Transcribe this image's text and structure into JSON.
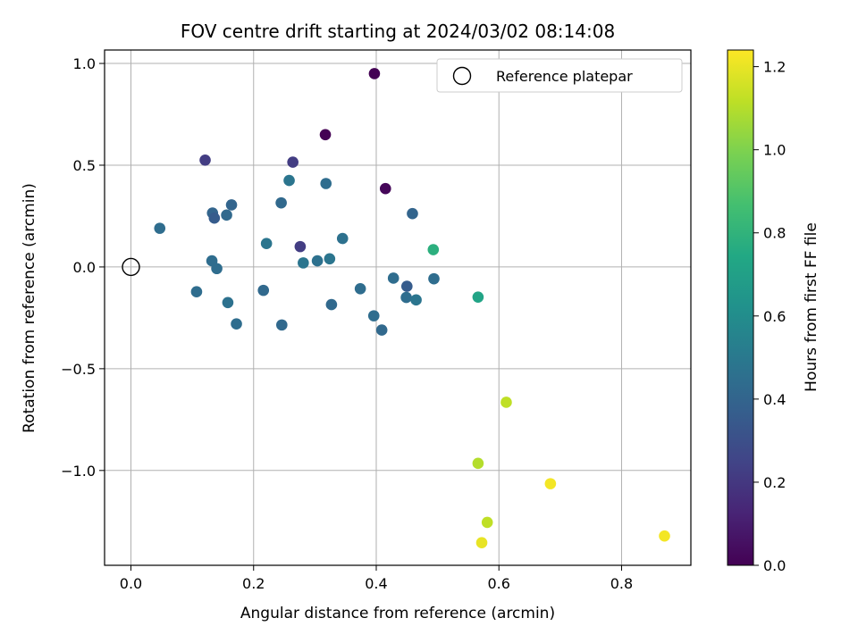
{
  "chart_data": {
    "type": "scatter",
    "title": "FOV centre drift starting at 2024/03/02 08:14:08",
    "xlabel": "Angular distance from reference (arcmin)",
    "ylabel": "Rotation from reference (arcmin)",
    "xlim": [
      -0.043,
      0.913
    ],
    "ylim": [
      -1.466,
      1.066
    ],
    "xticks": [
      0.0,
      0.2,
      0.4,
      0.6,
      0.8
    ],
    "xtick_labels": [
      "0.0",
      "0.2",
      "0.4",
      "0.6",
      "0.8"
    ],
    "yticks": [
      1.0,
      0.5,
      0.0,
      -0.5,
      -1.0
    ],
    "ytick_labels": [
      "1.0",
      "0.5",
      "0.0",
      "−0.5",
      "−1.0"
    ],
    "grid": true,
    "legend": {
      "placement": "top-right",
      "entries": [
        "Reference platepar"
      ]
    },
    "reference_point": {
      "x": 0.0,
      "y": 0.0,
      "marker": "open-circle"
    },
    "colorbar": {
      "label": "Hours from first FF file",
      "min": 0.0,
      "max": 1.24,
      "ticks": [
        0.0,
        0.2,
        0.4,
        0.6,
        0.8,
        1.0,
        1.2
      ],
      "tick_labels": [
        "0.0",
        "0.2",
        "0.4",
        "0.6",
        "0.8",
        "1.0",
        "1.2"
      ],
      "colormap": "viridis"
    },
    "points": [
      {
        "x": 0.397,
        "y": 0.95,
        "c": 0.0
      },
      {
        "x": 0.317,
        "y": 0.65,
        "c": 0.0
      },
      {
        "x": 0.415,
        "y": 0.385,
        "c": 0.02
      },
      {
        "x": 0.121,
        "y": 0.525,
        "c": 0.22
      },
      {
        "x": 0.264,
        "y": 0.515,
        "c": 0.22
      },
      {
        "x": 0.276,
        "y": 0.1,
        "c": 0.22
      },
      {
        "x": 0.258,
        "y": 0.425,
        "c": 0.48
      },
      {
        "x": 0.318,
        "y": 0.41,
        "c": 0.44
      },
      {
        "x": 0.245,
        "y": 0.315,
        "c": 0.42
      },
      {
        "x": 0.164,
        "y": 0.305,
        "c": 0.4
      },
      {
        "x": 0.133,
        "y": 0.265,
        "c": 0.4
      },
      {
        "x": 0.156,
        "y": 0.255,
        "c": 0.42
      },
      {
        "x": 0.136,
        "y": 0.24,
        "c": 0.36
      },
      {
        "x": 0.459,
        "y": 0.262,
        "c": 0.4
      },
      {
        "x": 0.047,
        "y": 0.19,
        "c": 0.44
      },
      {
        "x": 0.345,
        "y": 0.14,
        "c": 0.46
      },
      {
        "x": 0.221,
        "y": 0.115,
        "c": 0.48
      },
      {
        "x": 0.493,
        "y": 0.085,
        "c": 0.78
      },
      {
        "x": 0.132,
        "y": 0.03,
        "c": 0.44
      },
      {
        "x": 0.324,
        "y": 0.04,
        "c": 0.48
      },
      {
        "x": 0.304,
        "y": 0.03,
        "c": 0.46
      },
      {
        "x": 0.281,
        "y": 0.02,
        "c": 0.48
      },
      {
        "x": 0.14,
        "y": -0.008,
        "c": 0.44
      },
      {
        "x": 0.428,
        "y": -0.055,
        "c": 0.44
      },
      {
        "x": 0.494,
        "y": -0.058,
        "c": 0.44
      },
      {
        "x": 0.45,
        "y": -0.095,
        "c": 0.36
      },
      {
        "x": 0.374,
        "y": -0.107,
        "c": 0.44
      },
      {
        "x": 0.107,
        "y": -0.122,
        "c": 0.44
      },
      {
        "x": 0.216,
        "y": -0.115,
        "c": 0.42
      },
      {
        "x": 0.449,
        "y": -0.15,
        "c": 0.44
      },
      {
        "x": 0.465,
        "y": -0.162,
        "c": 0.48
      },
      {
        "x": 0.566,
        "y": -0.148,
        "c": 0.72
      },
      {
        "x": 0.158,
        "y": -0.175,
        "c": 0.46
      },
      {
        "x": 0.327,
        "y": -0.185,
        "c": 0.42
      },
      {
        "x": 0.396,
        "y": -0.24,
        "c": 0.44
      },
      {
        "x": 0.172,
        "y": -0.28,
        "c": 0.44
      },
      {
        "x": 0.246,
        "y": -0.285,
        "c": 0.42
      },
      {
        "x": 0.409,
        "y": -0.31,
        "c": 0.42
      },
      {
        "x": 0.612,
        "y": -0.665,
        "c": 1.12
      },
      {
        "x": 0.566,
        "y": -0.965,
        "c": 1.1
      },
      {
        "x": 0.684,
        "y": -1.065,
        "c": 1.22
      },
      {
        "x": 0.581,
        "y": -1.255,
        "c": 1.12
      },
      {
        "x": 0.572,
        "y": -1.355,
        "c": 1.2
      },
      {
        "x": 0.87,
        "y": -1.322,
        "c": 1.22
      }
    ]
  }
}
